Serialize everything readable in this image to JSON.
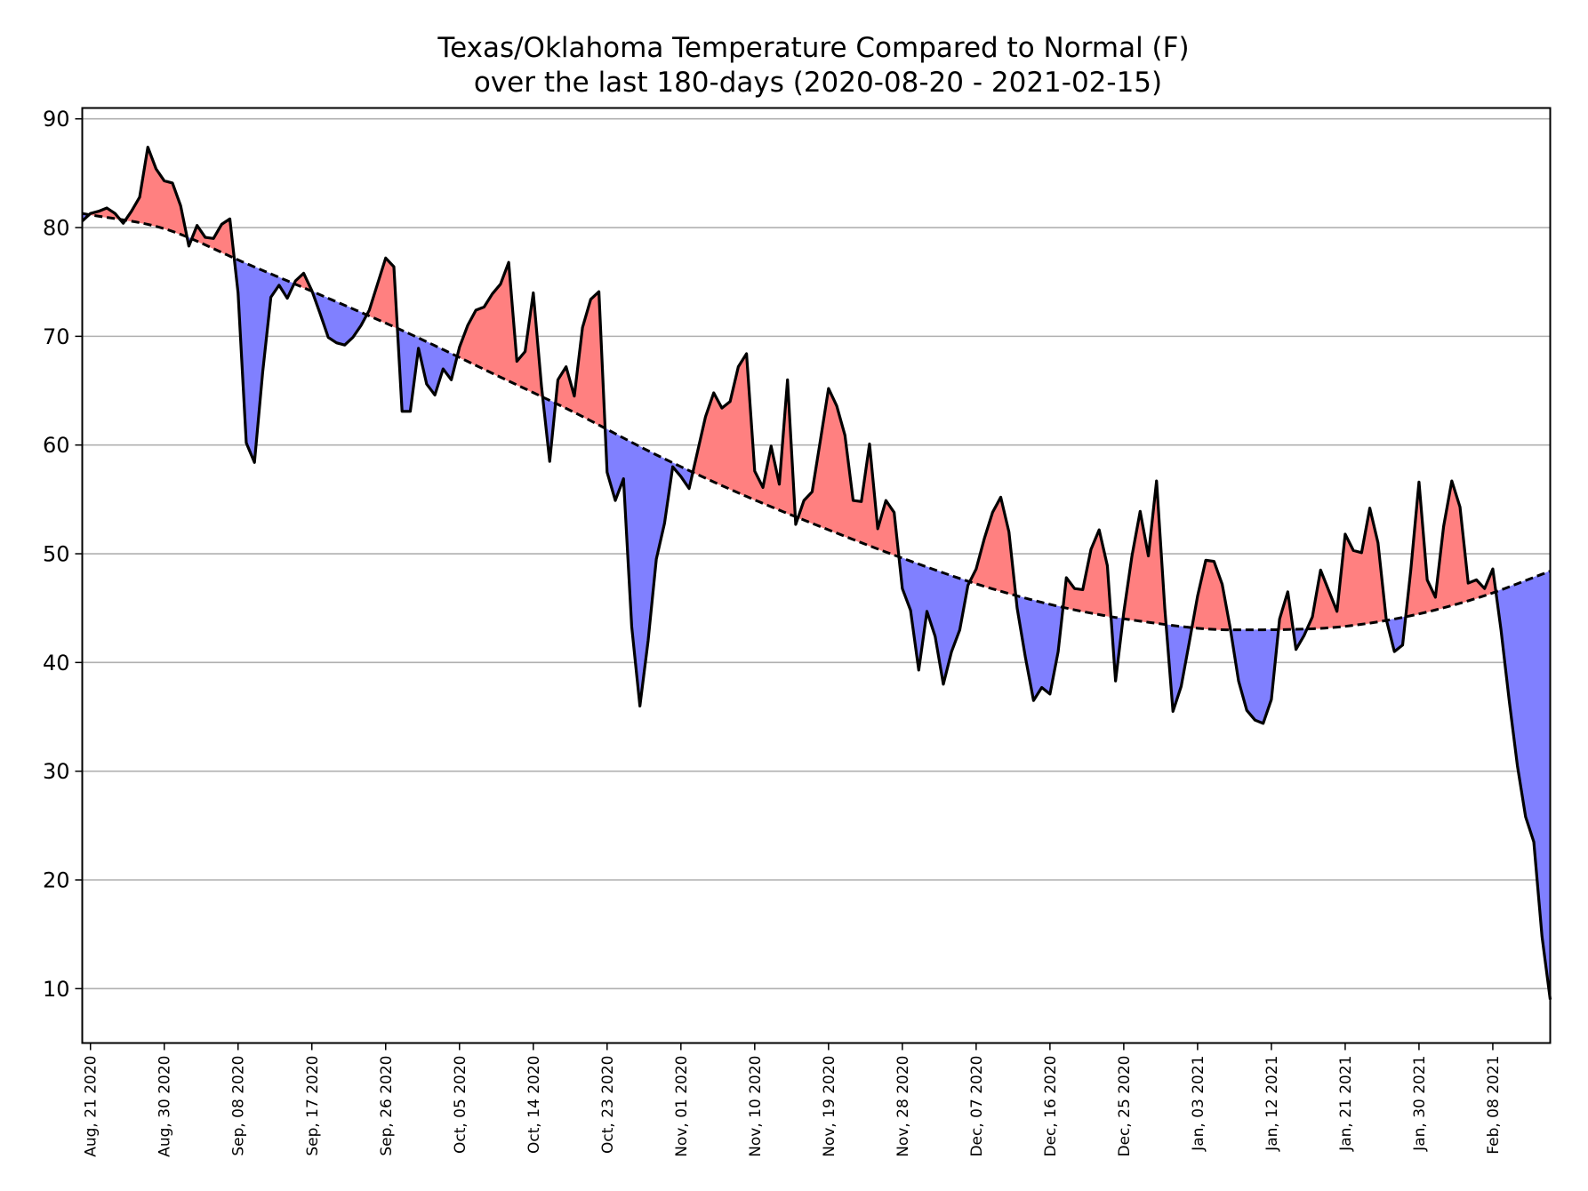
{
  "chart_data": {
    "type": "area",
    "title": "Texas/Oklahoma Temperature Compared to Normal (F)",
    "subtitle": "over the last 180-days (2020-08-20 - 2021-02-15)",
    "xlabel": "",
    "ylabel": "",
    "x_start": "2020-08-20",
    "xlim": [
      "2020-08-20",
      "2021-02-15"
    ],
    "ylim": [
      5,
      91
    ],
    "yticks": [
      10,
      20,
      30,
      40,
      50,
      60,
      70,
      80,
      90
    ],
    "grid": "horizontal",
    "xticks": [
      {
        "date": "2020-08-21",
        "label": "Aug, 21 2020"
      },
      {
        "date": "2020-08-30",
        "label": "Aug, 30 2020"
      },
      {
        "date": "2020-09-08",
        "label": "Sep, 08 2020"
      },
      {
        "date": "2020-09-17",
        "label": "Sep, 17 2020"
      },
      {
        "date": "2020-09-26",
        "label": "Sep, 26 2020"
      },
      {
        "date": "2020-10-05",
        "label": "Oct, 05 2020"
      },
      {
        "date": "2020-10-14",
        "label": "Oct, 14 2020"
      },
      {
        "date": "2020-10-23",
        "label": "Oct, 23 2020"
      },
      {
        "date": "2020-11-01",
        "label": "Nov, 01 2020"
      },
      {
        "date": "2020-11-10",
        "label": "Nov, 10 2020"
      },
      {
        "date": "2020-11-19",
        "label": "Nov, 19 2020"
      },
      {
        "date": "2020-11-28",
        "label": "Nov, 28 2020"
      },
      {
        "date": "2020-12-07",
        "label": "Dec, 07 2020"
      },
      {
        "date": "2020-12-16",
        "label": "Dec, 16 2020"
      },
      {
        "date": "2020-12-25",
        "label": "Dec, 25 2020"
      },
      {
        "date": "2021-01-03",
        "label": "Jan, 03 2021"
      },
      {
        "date": "2021-01-12",
        "label": "Jan, 12 2021"
      },
      {
        "date": "2021-01-21",
        "label": "Jan, 21 2021"
      },
      {
        "date": "2021-01-30",
        "label": "Jan, 30 2021"
      },
      {
        "date": "2021-02-08",
        "label": "Feb, 08 2021"
      }
    ],
    "colors": {
      "above_normal": "#ff8080",
      "below_normal": "#8080ff",
      "observed_line": "#000000",
      "normal_line": "#000000",
      "grid": "#b0b0b0"
    },
    "series": [
      {
        "style": "solid",
        "points": [
          [
            "2020-08-20",
            80.6
          ],
          [
            "2020-08-21",
            81.3
          ],
          [
            "2020-08-22",
            81.5
          ],
          [
            "2020-08-23",
            81.8
          ],
          [
            "2020-08-24",
            81.3
          ],
          [
            "2020-08-25",
            80.4
          ],
          [
            "2020-08-26",
            81.5
          ],
          [
            "2020-08-27",
            82.8
          ],
          [
            "2020-08-28",
            87.4
          ],
          [
            "2020-08-29",
            85.4
          ],
          [
            "2020-08-30",
            84.3
          ],
          [
            "2020-08-31",
            84.1
          ],
          [
            "2020-09-01",
            82.0
          ],
          [
            "2020-09-02",
            78.3
          ],
          [
            "2020-09-03",
            80.2
          ],
          [
            "2020-09-04",
            79.1
          ],
          [
            "2020-09-05",
            79.0
          ],
          [
            "2020-09-06",
            80.3
          ],
          [
            "2020-09-07",
            80.8
          ],
          [
            "2020-09-08",
            74.0
          ],
          [
            "2020-09-09",
            60.2
          ],
          [
            "2020-09-10",
            58.4
          ],
          [
            "2020-09-11",
            66.7
          ],
          [
            "2020-09-12",
            73.6
          ],
          [
            "2020-09-13",
            74.7
          ],
          [
            "2020-09-14",
            73.5
          ],
          [
            "2020-09-15",
            75.1
          ],
          [
            "2020-09-16",
            75.8
          ],
          [
            "2020-09-17",
            74.2
          ],
          [
            "2020-09-18",
            72.1
          ],
          [
            "2020-09-19",
            69.9
          ],
          [
            "2020-09-20",
            69.4
          ],
          [
            "2020-09-21",
            69.2
          ],
          [
            "2020-09-22",
            69.9
          ],
          [
            "2020-09-23",
            71.0
          ],
          [
            "2020-09-24",
            72.4
          ],
          [
            "2020-09-25",
            74.8
          ],
          [
            "2020-09-26",
            77.2
          ],
          [
            "2020-09-27",
            76.4
          ],
          [
            "2020-09-28",
            63.1
          ],
          [
            "2020-09-29",
            63.1
          ],
          [
            "2020-09-30",
            68.9
          ],
          [
            "2020-10-01",
            65.6
          ],
          [
            "2020-10-02",
            64.6
          ],
          [
            "2020-10-03",
            67.0
          ],
          [
            "2020-10-04",
            66.0
          ],
          [
            "2020-10-05",
            69.0
          ],
          [
            "2020-10-06",
            71.0
          ],
          [
            "2020-10-07",
            72.4
          ],
          [
            "2020-10-08",
            72.7
          ],
          [
            "2020-10-09",
            73.9
          ],
          [
            "2020-10-10",
            74.8
          ],
          [
            "2020-10-11",
            76.8
          ],
          [
            "2020-10-12",
            67.7
          ],
          [
            "2020-10-13",
            68.6
          ],
          [
            "2020-10-14",
            74.0
          ],
          [
            "2020-10-15",
            65.4
          ],
          [
            "2020-10-16",
            58.5
          ],
          [
            "2020-10-17",
            66.0
          ],
          [
            "2020-10-18",
            67.2
          ],
          [
            "2020-10-19",
            64.5
          ],
          [
            "2020-10-20",
            70.8
          ],
          [
            "2020-10-21",
            73.4
          ],
          [
            "2020-10-22",
            74.1
          ],
          [
            "2020-10-23",
            57.5
          ],
          [
            "2020-10-24",
            54.9
          ],
          [
            "2020-10-25",
            56.9
          ],
          [
            "2020-10-26",
            43.3
          ],
          [
            "2020-10-27",
            36.0
          ],
          [
            "2020-10-28",
            42.0
          ],
          [
            "2020-10-29",
            49.5
          ],
          [
            "2020-10-30",
            52.8
          ],
          [
            "2020-10-31",
            58.0
          ],
          [
            "2020-11-01",
            57.1
          ],
          [
            "2020-11-02",
            56.0
          ],
          [
            "2020-11-03",
            59.3
          ],
          [
            "2020-11-04",
            62.6
          ],
          [
            "2020-11-05",
            64.8
          ],
          [
            "2020-11-06",
            63.4
          ],
          [
            "2020-11-07",
            64.0
          ],
          [
            "2020-11-08",
            67.2
          ],
          [
            "2020-11-09",
            68.4
          ],
          [
            "2020-11-10",
            57.6
          ],
          [
            "2020-11-11",
            56.1
          ],
          [
            "2020-11-12",
            59.9
          ],
          [
            "2020-11-13",
            56.4
          ],
          [
            "2020-11-14",
            66.0
          ],
          [
            "2020-11-15",
            52.7
          ],
          [
            "2020-11-16",
            54.9
          ],
          [
            "2020-11-17",
            55.7
          ],
          [
            "2020-11-18",
            60.4
          ],
          [
            "2020-11-19",
            65.2
          ],
          [
            "2020-11-20",
            63.6
          ],
          [
            "2020-11-21",
            60.9
          ],
          [
            "2020-11-22",
            54.9
          ],
          [
            "2020-11-23",
            54.8
          ],
          [
            "2020-11-24",
            60.1
          ],
          [
            "2020-11-25",
            52.3
          ],
          [
            "2020-11-26",
            54.9
          ],
          [
            "2020-11-27",
            53.8
          ],
          [
            "2020-11-28",
            46.8
          ],
          [
            "2020-11-29",
            44.8
          ],
          [
            "2020-11-30",
            39.3
          ],
          [
            "2020-12-01",
            44.7
          ],
          [
            "2020-12-02",
            42.4
          ],
          [
            "2020-12-03",
            38.0
          ],
          [
            "2020-12-04",
            41.0
          ],
          [
            "2020-12-05",
            43.0
          ],
          [
            "2020-12-06",
            47.1
          ],
          [
            "2020-12-07",
            48.6
          ],
          [
            "2020-12-08",
            51.4
          ],
          [
            "2020-12-09",
            53.8
          ],
          [
            "2020-12-10",
            55.2
          ],
          [
            "2020-12-11",
            52.0
          ],
          [
            "2020-12-12",
            45.0
          ],
          [
            "2020-12-13",
            40.5
          ],
          [
            "2020-12-14",
            36.5
          ],
          [
            "2020-12-15",
            37.7
          ],
          [
            "2020-12-16",
            37.1
          ],
          [
            "2020-12-17",
            41.0
          ],
          [
            "2020-12-18",
            47.8
          ],
          [
            "2020-12-19",
            46.8
          ],
          [
            "2020-12-20",
            46.7
          ],
          [
            "2020-12-21",
            50.4
          ],
          [
            "2020-12-22",
            52.2
          ],
          [
            "2020-12-23",
            48.9
          ],
          [
            "2020-12-24",
            38.3
          ],
          [
            "2020-12-25",
            44.6
          ],
          [
            "2020-12-26",
            49.8
          ],
          [
            "2020-12-27",
            53.9
          ],
          [
            "2020-12-28",
            49.8
          ],
          [
            "2020-12-29",
            56.7
          ],
          [
            "2020-12-30",
            45.0
          ],
          [
            "2020-12-31",
            35.5
          ],
          [
            "2021-01-01",
            37.8
          ],
          [
            "2021-01-02",
            41.9
          ],
          [
            "2021-01-03",
            46.1
          ],
          [
            "2021-01-04",
            49.4
          ],
          [
            "2021-01-05",
            49.3
          ],
          [
            "2021-01-06",
            47.2
          ],
          [
            "2021-01-07",
            43.1
          ],
          [
            "2021-01-08",
            38.3
          ],
          [
            "2021-01-09",
            35.6
          ],
          [
            "2021-01-10",
            34.7
          ],
          [
            "2021-01-11",
            34.4
          ],
          [
            "2021-01-12",
            36.6
          ],
          [
            "2021-01-13",
            44.0
          ],
          [
            "2021-01-14",
            46.5
          ],
          [
            "2021-01-15",
            41.2
          ],
          [
            "2021-01-16",
            42.5
          ],
          [
            "2021-01-17",
            44.2
          ],
          [
            "2021-01-18",
            48.5
          ],
          [
            "2021-01-19",
            46.6
          ],
          [
            "2021-01-20",
            44.7
          ],
          [
            "2021-01-21",
            51.8
          ],
          [
            "2021-01-22",
            50.3
          ],
          [
            "2021-01-23",
            50.1
          ],
          [
            "2021-01-24",
            54.2
          ],
          [
            "2021-01-25",
            51.0
          ],
          [
            "2021-01-26",
            44.0
          ],
          [
            "2021-01-27",
            41.0
          ],
          [
            "2021-01-28",
            41.6
          ],
          [
            "2021-01-29",
            48.5
          ],
          [
            "2021-01-30",
            56.6
          ],
          [
            "2021-01-31",
            47.6
          ],
          [
            "2021-02-01",
            46.0
          ],
          [
            "2021-02-02",
            52.5
          ],
          [
            "2021-02-03",
            56.7
          ],
          [
            "2021-02-04",
            54.3
          ],
          [
            "2021-02-05",
            47.3
          ],
          [
            "2021-02-06",
            47.6
          ],
          [
            "2021-02-07",
            46.8
          ],
          [
            "2021-02-08",
            48.6
          ],
          [
            "2021-02-09",
            43.0
          ],
          [
            "2021-02-10",
            36.5
          ],
          [
            "2021-02-11",
            30.5
          ],
          [
            "2021-02-12",
            25.8
          ],
          [
            "2021-02-13",
            23.5
          ],
          [
            "2021-02-14",
            14.8
          ],
          [
            "2021-02-15",
            9.0
          ]
        ]
      },
      {
        "style": "dashed",
        "points": [
          [
            "2020-08-20",
            81.3
          ],
          [
            "2020-08-30",
            79.9
          ],
          [
            "2020-09-09",
            76.7
          ],
          [
            "2020-09-19",
            73.5
          ],
          [
            "2020-09-29",
            70.2
          ],
          [
            "2020-10-09",
            66.6
          ],
          [
            "2020-10-19",
            63.0
          ],
          [
            "2020-10-29",
            59.1
          ],
          [
            "2020-11-08",
            55.6
          ],
          [
            "2020-11-18",
            52.5
          ],
          [
            "2020-11-28",
            49.6
          ],
          [
            "2020-12-08",
            47.0
          ],
          [
            "2020-12-18",
            45.0
          ],
          [
            "2020-12-28",
            43.7
          ],
          [
            "2021-01-07",
            43.0
          ],
          [
            "2021-01-17",
            43.1
          ],
          [
            "2021-01-27",
            44.0
          ],
          [
            "2021-02-06",
            45.9
          ],
          [
            "2021-02-15",
            48.4
          ]
        ]
      }
    ]
  }
}
